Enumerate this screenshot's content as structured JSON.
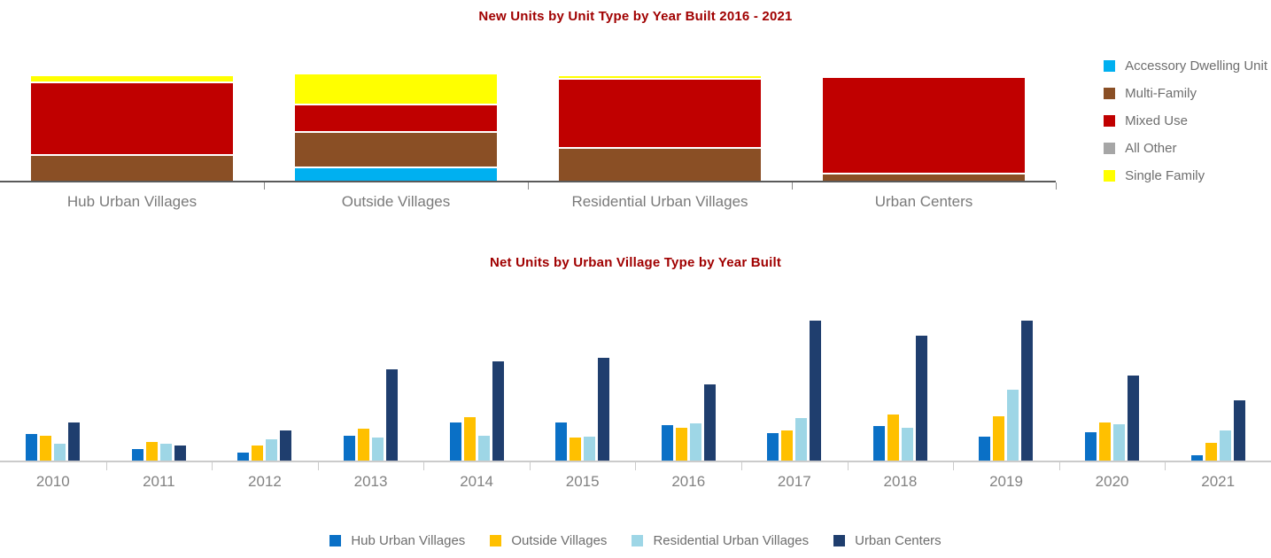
{
  "colors": {
    "title_text": "#a00000",
    "axis_label_text": "#7a7a7a",
    "legend_text": "#6e6e6e",
    "top_axis_line": "#5a5a5a",
    "bottom_axis_line": "#cbcbcb",
    "accessory_dwelling_unit": "#00b0f0",
    "multi_family": "#8a4f25",
    "mixed_use": "#c00000",
    "all_other": "#a6a6a6",
    "single_family": "#ffff00",
    "hub_urban_villages": "#0a70c6",
    "outside_villages": "#ffc000",
    "residential_urban_villages": "#9ed6e6",
    "urban_centers": "#1f3e6e"
  },
  "chart_data": [
    {
      "type": "bar",
      "subtype": "stacked-100-percent",
      "title": "New Units by Unit Type by Year Built 2016 - 2021",
      "categories": [
        "Hub Urban Villages",
        "Outside Villages",
        "Residential Urban Villages",
        "Urban Centers"
      ],
      "series": [
        {
          "name": "Accessory Dwelling Unit",
          "color": "#00b0f0",
          "values": [
            0,
            12,
            0,
            0
          ]
        },
        {
          "name": "Multi-Family",
          "color": "#8a4f25",
          "values": [
            25,
            34,
            32,
            6
          ]
        },
        {
          "name": "Mixed Use",
          "color": "#c00000",
          "values": [
            70,
            25,
            66,
            94
          ]
        },
        {
          "name": "All Other",
          "color": "#a6a6a6",
          "values": [
            0,
            0,
            0,
            0
          ]
        },
        {
          "name": "Single Family",
          "color": "#ffff00",
          "values": [
            5,
            29,
            2,
            0
          ]
        }
      ],
      "value_unit": "estimated percent share (no value axis shown)",
      "ylim": [
        0,
        100
      ],
      "grid": false,
      "legend_position": "right",
      "stack_order_bottom_to_top": [
        "Accessory Dwelling Unit",
        "Multi-Family",
        "Mixed Use",
        "All Other",
        "Single Family"
      ]
    },
    {
      "type": "bar",
      "subtype": "grouped",
      "title": "Net Units by Urban Village Type by Year Built",
      "categories": [
        "2010",
        "2011",
        "2012",
        "2013",
        "2014",
        "2015",
        "2016",
        "2017",
        "2018",
        "2019",
        "2020",
        "2021"
      ],
      "series": [
        {
          "name": "Hub Urban Villages",
          "color": "#0a70c6",
          "values": [
            30,
            13,
            9,
            28,
            43,
            43,
            40,
            31,
            39,
            27,
            32,
            6
          ]
        },
        {
          "name": "Outside Villages",
          "color": "#ffc000",
          "values": [
            28,
            21,
            17,
            36,
            49,
            26,
            37,
            34,
            52,
            50,
            43,
            20
          ]
        },
        {
          "name": "Residential Urban Villages",
          "color": "#9ed6e6",
          "values": [
            19,
            19,
            24,
            26,
            28,
            27,
            42,
            48,
            37,
            80,
            41,
            34
          ]
        },
        {
          "name": "Urban Centers",
          "color": "#1f3e6e",
          "values": [
            43,
            17,
            34,
            103,
            112,
            116,
            86,
            158,
            141,
            158,
            96,
            68
          ]
        }
      ],
      "value_unit": "relative bar height, arbitrary units (no value axis shown)",
      "ylim": [
        0,
        165
      ],
      "grid": false,
      "legend_position": "bottom"
    }
  ]
}
